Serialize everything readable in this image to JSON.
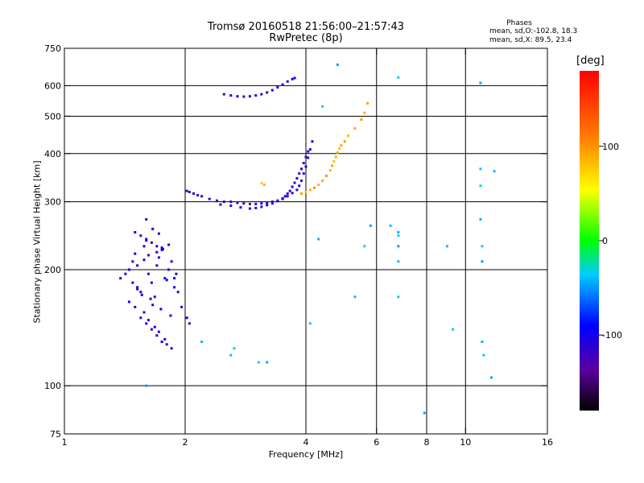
{
  "title": "Tromsø 20160518 21:56:00–21:57:43",
  "subtitle": "RwPretec (8p)",
  "stats": {
    "heading": "Phases",
    "o_line": "mean, sd,O:-102.8, 18.3",
    "x_line": "mean, sd,X:  89.5, 23.4"
  },
  "colorbar": {
    "unit": "[deg]",
    "ticks": [
      "100",
      "0",
      "-100"
    ],
    "tick_values": [
      100,
      0,
      -100
    ],
    "range": [
      -180,
      180
    ]
  },
  "chart_data": {
    "type": "scatter",
    "title": "Tromsø 20160518 21:56:00–21:57:43",
    "subtitle": "RwPretec (8p)",
    "xlabel": "Frequency [MHz]",
    "ylabel": "Stationary phase Virtual Height [km]",
    "x_scale": "log",
    "y_scale": "log",
    "xlim": [
      1,
      16
    ],
    "ylim": [
      75,
      750
    ],
    "x_ticks": [
      1,
      2,
      4,
      6,
      8,
      10,
      16
    ],
    "x_tick_labels": [
      "1",
      "2",
      "4",
      "6",
      "8",
      "10",
      "16"
    ],
    "y_ticks": [
      75,
      100,
      200,
      300,
      400,
      500,
      600,
      750
    ],
    "y_tick_labels": [
      "75",
      "100",
      "200",
      "300",
      "400",
      "500",
      "600",
      "750"
    ],
    "x_grid": [
      2,
      4,
      6,
      8,
      10
    ],
    "y_grid": [
      100,
      200,
      300,
      400,
      500,
      600
    ],
    "color_scale": "rainbow phase [deg]",
    "color_range": [
      -180,
      180
    ],
    "series": [
      {
        "trace": "O-mode E/F1 cluster",
        "phase": -105,
        "x": [
          1.38,
          1.42,
          1.45,
          1.48,
          1.5,
          1.52,
          1.55,
          1.58,
          1.6,
          1.62,
          1.65,
          1.68,
          1.7,
          1.72,
          1.75,
          1.78,
          1.8,
          1.82,
          1.85,
          1.88,
          1.9,
          1.45,
          1.5,
          1.55,
          1.6,
          1.65,
          1.7,
          1.75,
          1.8,
          1.85,
          1.5,
          1.55,
          1.6,
          1.65,
          1.7,
          1.75,
          1.58,
          1.62,
          1.68,
          1.72,
          1.78,
          1.48,
          1.52,
          1.56,
          1.64,
          1.66,
          1.74,
          1.84,
          1.52,
          1.58,
          1.62,
          1.7,
          1.76,
          1.82,
          1.88,
          1.92,
          1.96,
          2.02,
          2.05,
          1.6,
          1.66,
          1.72
        ],
        "y": [
          190,
          195,
          200,
          210,
          220,
          180,
          175,
          230,
          240,
          195,
          185,
          170,
          205,
          215,
          225,
          190,
          188,
          200,
          210,
          180,
          195,
          165,
          160,
          150,
          145,
          140,
          135,
          130,
          128,
          125,
          250,
          245,
          238,
          235,
          230,
          228,
          155,
          148,
          142,
          138,
          132,
          185,
          178,
          172,
          168,
          162,
          158,
          152,
          205,
          212,
          218,
          222,
          226,
          232,
          190,
          175,
          160,
          150,
          145,
          270,
          255,
          248
        ]
      },
      {
        "trace": "O-mode F trace",
        "phase": -110,
        "x": [
          2.02,
          2.05,
          2.1,
          2.15,
          2.2,
          2.3,
          2.4,
          2.5,
          2.6,
          2.7,
          2.8,
          2.9,
          3.0,
          3.1,
          3.2,
          3.3,
          3.4,
          3.5,
          3.6,
          3.7,
          3.8,
          3.85,
          3.9,
          3.95,
          4.0,
          4.05,
          4.1,
          4.15,
          2.45,
          2.6,
          2.75,
          2.9,
          3.0,
          3.1,
          3.2,
          3.3,
          3.4,
          3.5,
          3.55,
          3.6,
          3.65,
          3.7,
          3.75,
          3.8,
          3.85,
          3.9,
          3.95,
          4.0,
          4.05
        ],
        "y": [
          320,
          318,
          315,
          312,
          310,
          305,
          302,
          300,
          300,
          298,
          297,
          296,
          296,
          297,
          298,
          300,
          302,
          305,
          310,
          316,
          322,
          330,
          340,
          355,
          370,
          390,
          410,
          430,
          295,
          293,
          290,
          288,
          289,
          291,
          294,
          297,
          301,
          306,
          310,
          315,
          320,
          328,
          336,
          345,
          355,
          365,
          378,
          392,
          405
        ]
      },
      {
        "trace": "O-mode upper trace",
        "phase": -110,
        "x": [
          2.5,
          2.6,
          2.7,
          2.8,
          2.9,
          3.0,
          3.1,
          3.2,
          3.3,
          3.4,
          3.5,
          3.6,
          3.7,
          3.75
        ],
        "y": [
          570,
          566,
          563,
          562,
          563,
          566,
          570,
          576,
          584,
          594,
          604,
          615,
          624,
          628
        ]
      },
      {
        "trace": "X-mode F trace",
        "phase": 90,
        "x": [
          3.1,
          3.15,
          3.9,
          4.0,
          4.1,
          4.2,
          4.3,
          4.4,
          4.5,
          4.6,
          4.65,
          4.7,
          4.75,
          4.8,
          4.85,
          4.9,
          5.0,
          5.1,
          5.3,
          5.5,
          5.6,
          5.7
        ],
        "y": [
          335,
          332,
          315,
          318,
          322,
          326,
          332,
          340,
          350,
          362,
          372,
          382,
          392,
          402,
          412,
          420,
          430,
          445,
          465,
          490,
          510,
          540
        ]
      },
      {
        "trace": "scattered echoes",
        "phase": -40,
        "x": [
          1.6,
          4.3,
          4.4,
          4.8,
          5.3,
          5.6,
          5.8,
          6.5,
          6.8,
          6.8,
          6.8,
          6.8,
          6.8,
          6.8,
          7.9,
          9.0,
          9.3,
          10.9,
          10.9,
          10.9,
          10.9,
          11.0,
          11.0,
          11.0,
          11.1,
          11.6,
          11.8,
          3.05,
          3.2,
          2.6,
          2.65,
          2.2,
          4.1
        ],
        "y": [
          100,
          240,
          530,
          680,
          170,
          230,
          260,
          260,
          630,
          250,
          245,
          230,
          210,
          170,
          85,
          230,
          140,
          610,
          365,
          330,
          270,
          230,
          210,
          130,
          120,
          105,
          360,
          115,
          115,
          120,
          125,
          130,
          145
        ]
      }
    ]
  }
}
